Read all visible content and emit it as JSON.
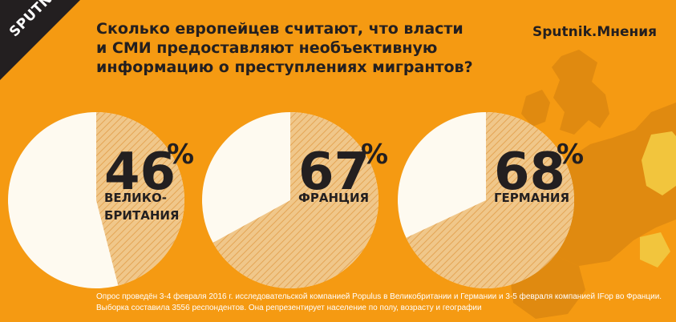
{
  "brand": {
    "logo": "SPUTNIK",
    "section": "Sputnik.Мнения"
  },
  "title": {
    "lines": [
      "Сколько европейцев считают, что власти",
      "и СМИ предоставляют необъективную",
      "информацию о преступлениях мигрантов?"
    ]
  },
  "footnote": {
    "line1": "Опрос проведён 3-4 февраля 2016 г. исследовательской компанией Populus в Великобритании и Германии и 3-5 февраля компанией IFop во Франции.",
    "line2": "Выборка составила 3556 респондентов. Она репрезентирует население по полу, возрасту и географии"
  },
  "colors": {
    "background": "#f59a12",
    "pie_rest": "#fefaf0",
    "pie_share": "#f0c78a",
    "hatch": "#e4a555",
    "text": "#231f20",
    "map_land": "#e08a10",
    "map_highlight": "#f2c53d"
  },
  "chart_data": {
    "type": "pie",
    "title": "Сколько европейцев считают, что власти и СМИ предоставляют необъективную информацию о преступлениях мигрантов?",
    "unit": "%",
    "series": [
      {
        "name": "ВЕЛИКО- БРИТАНИЯ",
        "label_lines": [
          "ВЕЛИКО-",
          "БРИТАНИЯ"
        ],
        "value": 46,
        "value_label": "46",
        "sign": "%"
      },
      {
        "name": "ФРАНЦИЯ",
        "label_lines": [
          "ФРАНЦИЯ"
        ],
        "value": 67,
        "value_label": "67",
        "sign": "%"
      },
      {
        "name": "ГЕРМАНИЯ",
        "label_lines": [
          "ГЕРМАНИЯ"
        ],
        "value": 68,
        "value_label": "68",
        "sign": "%"
      }
    ]
  }
}
